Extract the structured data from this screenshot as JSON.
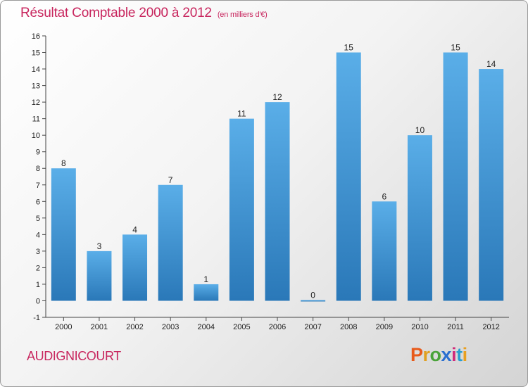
{
  "title": "Résultat Comptable 2000 à 2012",
  "subtitle": "(en milliers d'€)",
  "commune": "AUDIGNICOURT",
  "logo_text": "Proxiti",
  "logo_colors": [
    "#e85a1a",
    "#e0a020",
    "#4aa33a",
    "#2a6fd0",
    "#d12a7a",
    "#2a9ed0",
    "#e8a020"
  ],
  "colors": {
    "accent": "#c8265e",
    "bar_top": "#5aaee8",
    "bar_bottom": "#2a78b8",
    "axis": "#444444"
  },
  "chart_data": {
    "type": "bar",
    "title": "Résultat Comptable 2000 à 2012",
    "xlabel": "",
    "ylabel": "",
    "ylim": [
      -1,
      16
    ],
    "yticks": [
      -1,
      0,
      1,
      2,
      3,
      4,
      5,
      6,
      7,
      8,
      9,
      10,
      11,
      12,
      13,
      14,
      15,
      16
    ],
    "categories": [
      "2000",
      "2001",
      "2002",
      "2003",
      "2004",
      "2005",
      "2006",
      "2007",
      "2008",
      "2009",
      "2010",
      "2011",
      "2012"
    ],
    "values": [
      8,
      3,
      4,
      7,
      1,
      11,
      12,
      0,
      15,
      6,
      10,
      15,
      14
    ],
    "data_labels": [
      "8",
      "3",
      "4",
      "7",
      "1",
      "11",
      "12",
      "0",
      "15",
      "6",
      "10",
      "15",
      "14"
    ]
  }
}
